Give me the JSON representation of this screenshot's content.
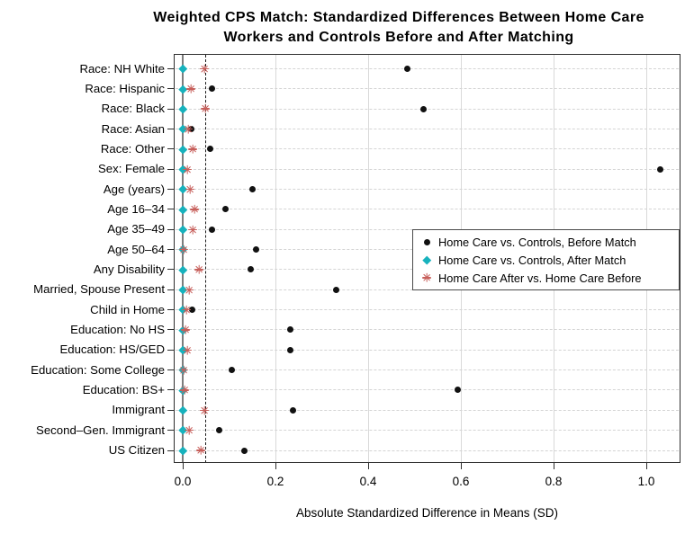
{
  "title": {
    "line1": "Weighted CPS Match: Standardized Differences Between Home Care",
    "line2": "Workers and Controls Before and After Matching"
  },
  "colors": {
    "before_match": "#111111",
    "after_match": "#17b2bd",
    "home_care_comparison": "#c75f5b",
    "grid": "#d9d9d9",
    "zero_line": "#7d7d7d",
    "threshold_line": "#1a1a1a"
  },
  "chart_data": {
    "type": "scatter",
    "subtype": "horizontal-dot-plot",
    "title": "Weighted CPS Match: Standardized Differences Between Home Care Workers and Controls Before and After Matching",
    "xlabel": "Absolute Standardized Difference in Means (SD)",
    "xlim": [
      -0.02,
      1.07
    ],
    "x_ticks": [
      0,
      0.2,
      0.4,
      0.6,
      0.8,
      1.0
    ],
    "x_tick_labels": [
      "0.0",
      "0.2",
      "0.4",
      "0.6",
      "0.8",
      "1.0"
    ],
    "grid": "light vertical lines at x ticks; light dashed horizontal line per category",
    "legend_position": "middle-right inset box",
    "reference_lines": {
      "solid": 0,
      "dashed": 0.05
    },
    "categories": [
      "Race: NH White",
      "Race: Hispanic",
      "Race: Black",
      "Race: Asian",
      "Race: Other",
      "Sex: Female",
      "Age (years)",
      "Age 16–34",
      "Age 35–49",
      "Age 50–64",
      "Any Disability",
      "Married, Spouse Present",
      "Child in Home",
      "Education: No HS",
      "Education: HS/GED",
      "Education: Some College",
      "Education: BS+",
      "Immigrant",
      "Second–Gen. Immigrant",
      "US Citizen"
    ],
    "series": [
      {
        "name": "Home Care vs. Controls, Before Match",
        "marker": "filled-circle",
        "color": "#111111",
        "values": [
          0.485,
          0.064,
          0.52,
          0.018,
          0.059,
          1.031,
          0.151,
          0.093,
          0.063,
          0.158,
          0.146,
          0.332,
          0.02,
          0.232,
          0.233,
          0.106,
          0.594,
          0.237,
          0.078,
          0.133
        ]
      },
      {
        "name": "Home Care vs. Controls, After Match",
        "marker": "filled-diamond",
        "color": "#17b2bd",
        "values": [
          0,
          0,
          0,
          0,
          0,
          0,
          0,
          0,
          0,
          0,
          0,
          0,
          0,
          0,
          0,
          0,
          0,
          0,
          0,
          0
        ]
      },
      {
        "name": "Home Care After vs. Home Care Before",
        "marker": "asterisk",
        "color": "#c75f5b",
        "values": [
          0.047,
          0.018,
          0.048,
          0.012,
          0.021,
          0.01,
          0.016,
          0.025,
          0.022,
          0.002,
          0.035,
          0.014,
          0.008,
          0.006,
          0.01,
          0.001,
          0.003,
          0.047,
          0.014,
          0.039
        ]
      }
    ]
  }
}
